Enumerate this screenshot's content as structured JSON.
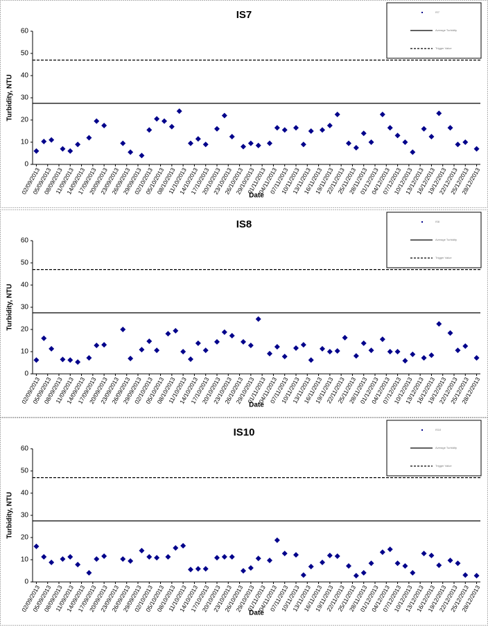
{
  "chart_data": [
    {
      "type": "scatter",
      "title": "IS7",
      "x_label": "Date",
      "y_label": "Turbidity, NTU",
      "color": "#00008b",
      "name": "IS7",
      "x": [
        "02/09/2013",
        "04/09/2013",
        "06/09/2013",
        "09/09/2013",
        "11/09/2013",
        "13/09/2013",
        "16/09/2013",
        "18/09/2013",
        "20/09/2013",
        "25/09/2013",
        "27/09/2013",
        "30/09/2013",
        "02/10/2013",
        "04/10/2013",
        "06/10/2013",
        "08/10/2013",
        "10/10/2013",
        "13/10/2013",
        "15/10/2013",
        "17/10/2013",
        "20/10/2013",
        "22/10/2013",
        "24/10/2013",
        "27/10/2013",
        "29/10/2013",
        "31/10/2013",
        "03/11/2013",
        "05/11/2013",
        "07/11/2013",
        "10/11/2013",
        "12/11/2013",
        "14/11/2013",
        "17/11/2013",
        "19/11/2013",
        "21/11/2013",
        "24/11/2013",
        "26/11/2013",
        "28/11/2013",
        "30/11/2013",
        "03/12/2013",
        "05/12/2013",
        "07/12/2013",
        "09/12/2013",
        "11/12/2013",
        "14/12/2013",
        "16/12/2013",
        "18/12/2013",
        "21/12/2013",
        "23/12/2013",
        "25/12/2013",
        "28/12/2013"
      ],
      "values": [
        6,
        10.3,
        11,
        7,
        6,
        9,
        12,
        19.5,
        17.5,
        9.5,
        5.5,
        4,
        15.5,
        20.5,
        19.5,
        17,
        24,
        9.5,
        11.5,
        9,
        16,
        22,
        12.5,
        8,
        9.5,
        8.5,
        9.5,
        16.5,
        15.5,
        16.5,
        9,
        15,
        15.5,
        17.5,
        22.5,
        9.5,
        7.5,
        14,
        10,
        22.5,
        16.5,
        13,
        10,
        5.5,
        16,
        12.5,
        23,
        16.5,
        9,
        10,
        7
      ],
      "reference_lines": [
        {
          "name": "Average Turbidity",
          "value": 27.5,
          "style": "solid"
        },
        {
          "name": "Trigger Value",
          "value": 47,
          "style": "dashed"
        }
      ],
      "xlim": [
        "01/09/2013",
        "29/12/2013"
      ],
      "xticks": [
        "02/09/2013",
        "05/09/2013",
        "08/09/2013",
        "11/09/2013",
        "14/09/2013",
        "17/09/2013",
        "20/09/2013",
        "23/09/2013",
        "26/09/2013",
        "29/09/2013",
        "02/10/2013",
        "05/10/2013",
        "08/10/2013",
        "11/10/2013",
        "14/10/2013",
        "17/10/2013",
        "20/10/2013",
        "23/10/2013",
        "26/10/2013",
        "29/10/2013",
        "01/11/2013",
        "04/11/2013",
        "07/11/2013",
        "10/11/2013",
        "13/11/2013",
        "16/11/2013",
        "19/11/2013",
        "22/11/2013",
        "25/11/2013",
        "28/11/2013",
        "01/12/2013",
        "04/12/2013",
        "07/12/2013",
        "10/12/2013",
        "13/12/2013",
        "16/12/2013",
        "19/12/2013",
        "22/12/2013",
        "25/12/2013",
        "28/12/2013"
      ],
      "ylim": [
        0,
        60
      ],
      "yticks": [
        0,
        10,
        20,
        30,
        40,
        50,
        60
      ]
    },
    {
      "type": "scatter",
      "title": "IS8",
      "x_label": "Date",
      "y_label": "Turbidity, NTU",
      "color": "#00008b",
      "name": "IS8",
      "x": [
        "02/09/2013",
        "04/09/2013",
        "06/09/2013",
        "09/09/2013",
        "11/09/2013",
        "13/09/2013",
        "16/09/2013",
        "18/09/2013",
        "20/09/2013",
        "25/09/2013",
        "27/09/2013",
        "30/09/2013",
        "02/10/2013",
        "04/10/2013",
        "07/10/2013",
        "09/10/2013",
        "11/10/2013",
        "13/10/2013",
        "15/10/2013",
        "17/10/2013",
        "20/10/2013",
        "22/10/2013",
        "24/10/2013",
        "27/10/2013",
        "29/10/2013",
        "31/10/2013",
        "03/11/2013",
        "05/11/2013",
        "07/11/2013",
        "10/11/2013",
        "12/11/2013",
        "14/11/2013",
        "17/11/2013",
        "19/11/2013",
        "21/11/2013",
        "23/11/2013",
        "26/11/2013",
        "28/11/2013",
        "30/11/2013",
        "03/12/2013",
        "05/12/2013",
        "07/12/2013",
        "09/12/2013",
        "11/12/2013",
        "14/12/2013",
        "16/12/2013",
        "18/12/2013",
        "21/12/2013",
        "23/12/2013",
        "25/12/2013",
        "28/12/2013"
      ],
      "values": [
        6.2,
        16,
        11.3,
        6.5,
        6.2,
        5.3,
        7.2,
        12.8,
        13.1,
        20,
        6.9,
        10.9,
        14.7,
        10.6,
        18.1,
        19.4,
        10,
        6.6,
        13.8,
        10.6,
        14.4,
        18.8,
        17.2,
        14.4,
        12.8,
        24.7,
        9.1,
        12.2,
        7.8,
        11.6,
        13.1,
        6.2,
        11.3,
        10,
        10.3,
        16.3,
        8.1,
        13.8,
        10.6,
        15.6,
        10,
        10,
        5.9,
        8.8,
        7.2,
        8.4,
        22.5,
        18.4,
        10.6,
        12.5,
        7.2
      ],
      "reference_lines": [
        {
          "name": "Average Turbidity",
          "value": 27.5,
          "style": "solid"
        },
        {
          "name": "Trigger Value",
          "value": 47,
          "style": "dashed"
        }
      ],
      "xlim": [
        "01/09/2013",
        "29/12/2013"
      ],
      "xticks": [
        "02/09/2013",
        "05/09/2013",
        "08/09/2013",
        "11/09/2013",
        "14/09/2013",
        "17/09/2013",
        "20/09/2013",
        "23/09/2013",
        "26/09/2013",
        "29/09/2013",
        "02/10/2013",
        "05/10/2013",
        "08/10/2013",
        "11/10/2013",
        "14/10/2013",
        "17/10/2013",
        "20/10/2013",
        "23/10/2013",
        "26/10/2013",
        "29/10/2013",
        "01/11/2013",
        "04/11/2013",
        "07/11/2013",
        "10/11/2013",
        "13/11/2013",
        "16/11/2013",
        "19/11/2013",
        "22/11/2013",
        "25/11/2013",
        "28/11/2013",
        "01/12/2013",
        "04/12/2013",
        "07/12/2013",
        "10/12/2013",
        "13/12/2013",
        "16/12/2013",
        "19/12/2013",
        "22/12/2013",
        "25/12/2013",
        "28/12/2013"
      ],
      "ylim": [
        0,
        60
      ],
      "yticks": [
        0,
        10,
        20,
        30,
        40,
        50,
        60
      ]
    },
    {
      "type": "scatter",
      "title": "IS10",
      "x_label": "Date",
      "y_label": "Turbidity, NTU",
      "color": "#00008b",
      "name": "IS10",
      "x": [
        "02/09/2013",
        "04/09/2013",
        "06/09/2013",
        "09/09/2013",
        "11/09/2013",
        "13/09/2013",
        "16/09/2013",
        "18/09/2013",
        "20/09/2013",
        "25/09/2013",
        "27/09/2013",
        "30/09/2013",
        "02/10/2013",
        "04/10/2013",
        "07/10/2013",
        "09/10/2013",
        "11/10/2013",
        "13/10/2013",
        "15/10/2013",
        "17/10/2013",
        "20/10/2013",
        "22/10/2013",
        "24/10/2013",
        "27/10/2013",
        "29/10/2013",
        "31/10/2013",
        "03/11/2013",
        "05/11/2013",
        "07/11/2013",
        "10/11/2013",
        "12/11/2013",
        "14/11/2013",
        "17/11/2013",
        "19/11/2013",
        "21/11/2013",
        "24/11/2013",
        "26/11/2013",
        "28/11/2013",
        "30/11/2013",
        "03/12/2013",
        "05/12/2013",
        "07/12/2013",
        "09/12/2013",
        "11/12/2013",
        "14/12/2013",
        "16/12/2013",
        "18/12/2013",
        "21/12/2013",
        "23/12/2013",
        "25/12/2013",
        "28/12/2013"
      ],
      "values": [
        16,
        11.3,
        8.8,
        10.3,
        11.3,
        7.8,
        4.1,
        10.3,
        11.6,
        10.3,
        9.4,
        14.1,
        11.3,
        10.9,
        11.3,
        15.3,
        16.3,
        5.6,
        5.9,
        5.9,
        10.9,
        11.3,
        11.3,
        5,
        6.3,
        10.6,
        9.7,
        18.8,
        12.8,
        12.2,
        3.1,
        6.9,
        8.8,
        11.9,
        11.6,
        7.2,
        2.8,
        4.1,
        8.4,
        13.4,
        14.7,
        8.4,
        7.2,
        4.1,
        12.8,
        11.9,
        7.5,
        9.7,
        8.4,
        3.1,
        2.8
      ],
      "reference_lines": [
        {
          "name": "Average Turbidity",
          "value": 27.5,
          "style": "solid"
        },
        {
          "name": "Trigger Value",
          "value": 47,
          "style": "dashed"
        }
      ],
      "xlim": [
        "01/09/2013",
        "29/12/2013"
      ],
      "xticks": [
        "02/09/2013",
        "05/09/2013",
        "08/09/2013",
        "11/09/2013",
        "14/09/2013",
        "17/09/2013",
        "20/09/2013",
        "23/09/2013",
        "26/09/2013",
        "29/09/2013",
        "02/10/2013",
        "05/10/2013",
        "08/10/2013",
        "11/10/2013",
        "14/10/2013",
        "17/10/2013",
        "20/10/2013",
        "23/10/2013",
        "26/10/2013",
        "29/10/2013",
        "01/11/2013",
        "04/11/2013",
        "07/11/2013",
        "10/11/2013",
        "13/11/2013",
        "16/11/2013",
        "19/11/2013",
        "22/11/2013",
        "25/11/2013",
        "28/11/2013",
        "01/12/2013",
        "04/12/2013",
        "07/12/2013",
        "10/12/2013",
        "13/12/2013",
        "16/12/2013",
        "19/12/2013",
        "22/12/2013",
        "25/12/2013",
        "28/12/2013"
      ],
      "ylim": [
        0,
        60
      ],
      "yticks": [
        0,
        10,
        20,
        30,
        40,
        50,
        60
      ]
    }
  ]
}
